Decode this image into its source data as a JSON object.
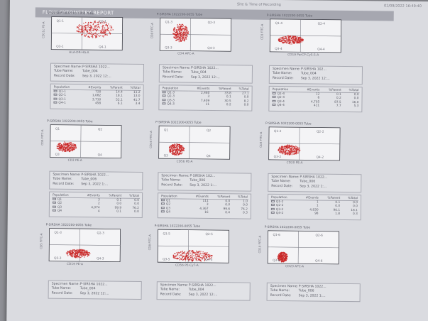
{
  "header": {
    "banner": "FLOW CYTOMETRY REPORT",
    "top_left": "Site & Time of Recording",
    "top_right": "02/09/2022 16:49:40"
  },
  "colors": {
    "dot": "#c92626",
    "axis": "#3d3e46",
    "gate": "#7e7f88"
  },
  "plots": [
    {
      "title": "P-SIRSHA 1022200-0055 Tube",
      "x_label": "HLA-DR-HA-A",
      "y_label": "CD11c PE-A",
      "quads": [
        "Q1-1",
        "Q2-1",
        "Q3-1",
        "Q4-1"
      ]
    },
    {
      "title": "P-SIRSHA 1022200-0055 Tube",
      "x_label": "CD4 APC-A",
      "y_label": "CD8 FITC-A",
      "quads": [
        "Q1-3",
        "Q2-3",
        "Q3-3",
        "Q4-3"
      ]
    },
    {
      "title": "P-SIRSHA 1022200-0055 Tube",
      "x_label": "CD19 PerCP-Cy5-5-A",
      "y_label": "CD3 FITC-A",
      "quads": [
        "Q1-4",
        "Q2-4",
        "Q3-4",
        "Q4-4"
      ]
    },
    {
      "title": "P-SIRSHA 1022200-0055 Tube",
      "x_label": "CD3 PE-A",
      "y_label": "CD4 FITC-A",
      "quads": [
        "Q1",
        "Q2",
        "Q3",
        "Q4"
      ]
    },
    {
      "title": "P-SIRSHA 1022200-0055 Tube",
      "x_label": "CD56 PE-A",
      "y_label": "CD16 FITC-A",
      "quads": [
        "Q1",
        "Q2",
        "Q3",
        "Q4"
      ]
    },
    {
      "title": "P-SIRSHA 1022200-0055 Tube",
      "x_label": "CD20 PE-A",
      "y_label": "CD3 FITC-A",
      "quads": [
        "Q1-2",
        "Q2-2",
        "Q3-2",
        "Q4-2"
      ]
    },
    {
      "title": "P-SIRSHA 1022200-0055 Tube",
      "x_label": "CD19 PE-A",
      "y_label": "CD5 FITC-A",
      "quads": [
        "Q1-3",
        "Q2-3",
        "Q3-3",
        "Q4-3"
      ]
    },
    {
      "title": "P-SIRSHA 1022200-0055 Tube",
      "x_label": "CD56 PE-Cy7-A",
      "y_label": "CD8 FITC-A",
      "quads": [
        "Q1-5",
        "Q2-5",
        "Q3-5",
        "Q4-5"
      ]
    },
    {
      "title": "P-SIRSHA 1022200-0055 Tube",
      "x_label": "CD23 APC-A",
      "y_label": "CD10 FITC-A",
      "quads": [
        "Q1-6",
        "Q2-6",
        "Q3-6",
        "Q4-6"
      ]
    }
  ],
  "info_labels": {
    "specimen": "Specimen Name:",
    "tube": "Tube Name:",
    "date": "Record Date:"
  },
  "infos": [
    {
      "specimen": "P-SIRSHA 1022...",
      "tube": "Tube_004",
      "date": "Sep 3, 2022 12:..."
    },
    {
      "specimen": "P-SIRSHA 1022...",
      "tube": "Tube_004",
      "date": "Sep 3, 2022 12:..."
    },
    {
      "specimen": "P-SIRSHA 102...",
      "tube": "Tube_004",
      "date": "Sep 3, 2022 12:..."
    },
    {
      "specimen": "P-SIRSHA 1022...",
      "tube": "Tube_006",
      "date": "Sep 3, 2022 1:..."
    },
    {
      "specimen": "P-SIRSHA 102...",
      "tube": "Tube_006",
      "date": "Sep 3, 2022 1:..."
    },
    {
      "specimen": "P-SIRSHA 1022...",
      "tube": "Tube_006",
      "date": "Sep 3, 2022 1:..."
    },
    {
      "specimen": "P-SIRSHA 1022...",
      "tube": "Tube_004",
      "date": "Sep 3, 2022 12:..."
    },
    {
      "specimen": "P-SIRSHA 1022...",
      "tube": "Tube_004",
      "date": "Sep 3, 2022 12:..."
    },
    {
      "specimen": "P-SIRSHA 1022...",
      "tube": "Tube_006",
      "date": "Sep 3, 2022 1:..."
    }
  ],
  "stats_headers": [
    "Population",
    "#Events",
    "%Parent",
    "%Total"
  ],
  "stats": [
    [
      [
        "Q1-1",
        "720",
        "14.4",
        "11.2"
      ],
      [
        "Q2-1",
        "1,082",
        "18.1",
        "13.0"
      ],
      [
        "Q3-1",
        "3,710",
        "52.1",
        "41.7"
      ],
      [
        "Q4-1",
        "458",
        "6.1",
        "3.4"
      ]
    ],
    [
      [
        "Q1-3",
        "2,460",
        "33.8",
        "27.1"
      ],
      [
        "Q2-3",
        "3",
        "0.1",
        "0.0"
      ],
      [
        "Q3-3",
        "7,409",
        "30.5",
        "8.2"
      ],
      [
        "Q4-3",
        "11",
        "0.2",
        "0.0"
      ]
    ],
    [
      [
        "Q1-4",
        "12",
        "0.1",
        "0.0"
      ],
      [
        "Q2-4",
        "6",
        "0.2",
        "0.0"
      ],
      [
        "Q3-4",
        "4,705",
        "87.5",
        "16.0"
      ],
      [
        "Q4-4",
        "411",
        "7.7",
        "5.3"
      ]
    ],
    [
      [
        "Q1",
        "3",
        "0.1",
        "0.0"
      ],
      [
        "Q2",
        "2",
        "0.0",
        "0.0"
      ],
      [
        "Q3",
        "4,074",
        "99.9",
        "76.2"
      ],
      [
        "Q4",
        "4",
        "0.1",
        "0.0"
      ]
    ],
    [
      [
        "Q1",
        "111",
        "0.0",
        "1.0"
      ],
      [
        "Q2",
        "3",
        "0.0",
        "0.0"
      ],
      [
        "Q3",
        "4,367",
        "99.6",
        "76.2"
      ],
      [
        "Q4",
        "16",
        "0.4",
        "0.3"
      ]
    ],
    [
      [
        "Q1-2",
        "1",
        "0.1",
        "0.0"
      ],
      [
        "Q2-2",
        "1",
        "0.0",
        "0.0"
      ],
      [
        "Q3-2",
        "4,830",
        "90.1",
        "18.1"
      ],
      [
        "Q4-2",
        "98",
        "1.8",
        "0.3"
      ]
    ]
  ]
}
